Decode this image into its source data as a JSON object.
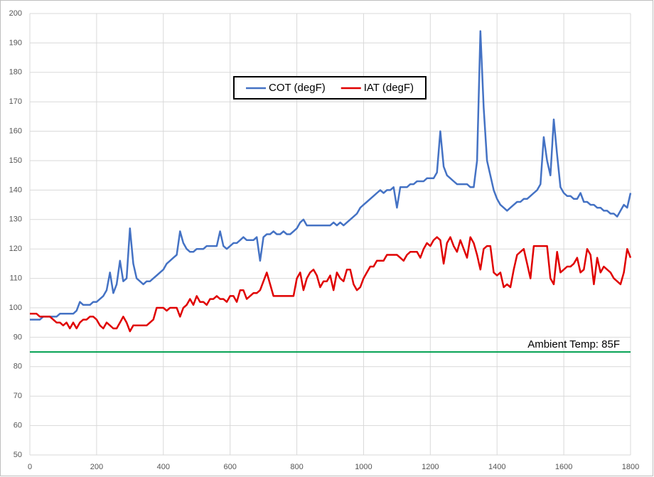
{
  "chart_data": {
    "type": "line",
    "x": [
      0,
      10,
      20,
      30,
      40,
      50,
      60,
      70,
      80,
      90,
      100,
      110,
      120,
      130,
      140,
      150,
      160,
      170,
      180,
      190,
      200,
      210,
      220,
      230,
      240,
      250,
      260,
      270,
      280,
      290,
      300,
      310,
      320,
      330,
      340,
      350,
      360,
      370,
      380,
      390,
      400,
      410,
      420,
      430,
      440,
      450,
      460,
      470,
      480,
      490,
      500,
      510,
      520,
      530,
      540,
      550,
      560,
      570,
      580,
      590,
      600,
      610,
      620,
      630,
      640,
      650,
      660,
      670,
      680,
      690,
      700,
      710,
      720,
      730,
      740,
      750,
      760,
      770,
      780,
      790,
      800,
      810,
      820,
      830,
      840,
      850,
      860,
      870,
      880,
      890,
      900,
      910,
      920,
      930,
      940,
      950,
      960,
      970,
      980,
      990,
      1000,
      1010,
      1020,
      1030,
      1040,
      1050,
      1060,
      1070,
      1080,
      1090,
      1100,
      1110,
      1120,
      1130,
      1140,
      1150,
      1160,
      1170,
      1180,
      1190,
      1200,
      1210,
      1220,
      1230,
      1240,
      1250,
      1260,
      1270,
      1280,
      1290,
      1300,
      1310,
      1320,
      1330,
      1340,
      1350,
      1360,
      1370,
      1380,
      1390,
      1400,
      1410,
      1420,
      1430,
      1440,
      1450,
      1460,
      1470,
      1480,
      1490,
      1500,
      1510,
      1520,
      1530,
      1540,
      1550,
      1560,
      1570,
      1580,
      1590,
      1600,
      1610,
      1620,
      1630,
      1640,
      1650,
      1660,
      1670,
      1680,
      1690,
      1700,
      1710,
      1720,
      1730,
      1740,
      1750,
      1760,
      1770,
      1780,
      1790,
      1800
    ],
    "series": [
      {
        "name": "COT (degF)",
        "color": "#4472c4",
        "values": [
          96,
          96,
          96,
          96,
          97,
          97,
          97,
          97,
          97,
          98,
          98,
          98,
          98,
          98,
          99,
          102,
          101,
          101,
          101,
          102,
          102,
          103,
          104,
          106,
          112,
          105,
          108,
          116,
          109,
          110,
          127,
          115,
          110,
          109,
          108,
          109,
          109,
          110,
          111,
          112,
          113,
          115,
          116,
          117,
          118,
          126,
          122,
          120,
          119,
          119,
          120,
          120,
          120,
          121,
          121,
          121,
          121,
          126,
          121,
          120,
          121,
          122,
          122,
          123,
          124,
          123,
          123,
          123,
          124,
          116,
          124,
          125,
          125,
          126,
          125,
          125,
          126,
          125,
          125,
          126,
          127,
          129,
          130,
          128,
          128,
          128,
          128,
          128,
          128,
          128,
          128,
          129,
          128,
          129,
          128,
          129,
          130,
          131,
          132,
          134,
          135,
          136,
          137,
          138,
          139,
          140,
          139,
          140,
          140,
          141,
          134,
          141,
          141,
          141,
          142,
          142,
          143,
          143,
          143,
          144,
          144,
          144,
          146,
          160,
          148,
          145,
          144,
          143,
          142,
          142,
          142,
          142,
          141,
          141,
          150,
          194,
          168,
          150,
          145,
          140,
          137,
          135,
          134,
          133,
          134,
          135,
          136,
          136,
          137,
          137,
          138,
          139,
          140,
          142,
          158,
          150,
          145,
          164,
          152,
          141,
          139,
          138,
          138,
          137,
          137,
          139,
          136,
          136,
          135,
          135,
          134,
          134,
          133,
          133,
          132,
          132,
          131,
          133,
          135,
          134,
          139
        ]
      },
      {
        "name": "IAT (degF)",
        "color": "#e00000",
        "values": [
          98,
          98,
          98,
          97,
          97,
          97,
          97,
          96,
          95,
          95,
          94,
          95,
          93,
          95,
          93,
          95,
          96,
          96,
          97,
          97,
          96,
          94,
          93,
          95,
          94,
          93,
          93,
          95,
          97,
          95,
          92,
          94,
          94,
          94,
          94,
          94,
          95,
          96,
          100,
          100,
          100,
          99,
          100,
          100,
          100,
          97,
          100,
          101,
          103,
          101,
          104,
          102,
          102,
          101,
          103,
          103,
          104,
          103,
          103,
          102,
          104,
          104,
          102,
          106,
          106,
          103,
          104,
          105,
          105,
          106,
          109,
          112,
          108,
          104,
          104,
          104,
          104,
          104,
          104,
          104,
          110,
          112,
          106,
          110,
          112,
          113,
          111,
          107,
          109,
          109,
          111,
          106,
          112,
          110,
          109,
          113,
          113,
          108,
          106,
          107,
          110,
          112,
          114,
          114,
          116,
          116,
          116,
          118,
          118,
          118,
          118,
          117,
          116,
          118,
          119,
          119,
          119,
          117,
          120,
          122,
          121,
          123,
          124,
          123,
          115,
          122,
          124,
          121,
          119,
          123,
          120,
          117,
          124,
          122,
          118,
          113,
          120,
          121,
          121,
          112,
          111,
          112,
          107,
          108,
          107,
          113,
          118,
          119,
          120,
          115,
          110,
          121,
          121,
          121,
          121,
          121,
          110,
          108,
          119,
          112,
          113,
          114,
          114,
          115,
          117,
          112,
          113,
          120,
          118,
          108,
          117,
          112,
          114,
          113,
          112,
          110,
          109,
          108,
          112,
          120,
          117
        ]
      }
    ],
    "xlim": [
      0,
      1800
    ],
    "xticks": [
      0,
      200,
      400,
      600,
      800,
      1000,
      1200,
      1400,
      1600,
      1800
    ],
    "ylim": [
      50,
      200
    ],
    "yticks": [
      50,
      60,
      70,
      80,
      90,
      100,
      110,
      120,
      130,
      140,
      150,
      160,
      170,
      180,
      190,
      200
    ],
    "grid": true,
    "legend": "top",
    "reference_line": {
      "value": 85,
      "label": "Ambient Temp: 85F",
      "color": "#00a050"
    }
  }
}
